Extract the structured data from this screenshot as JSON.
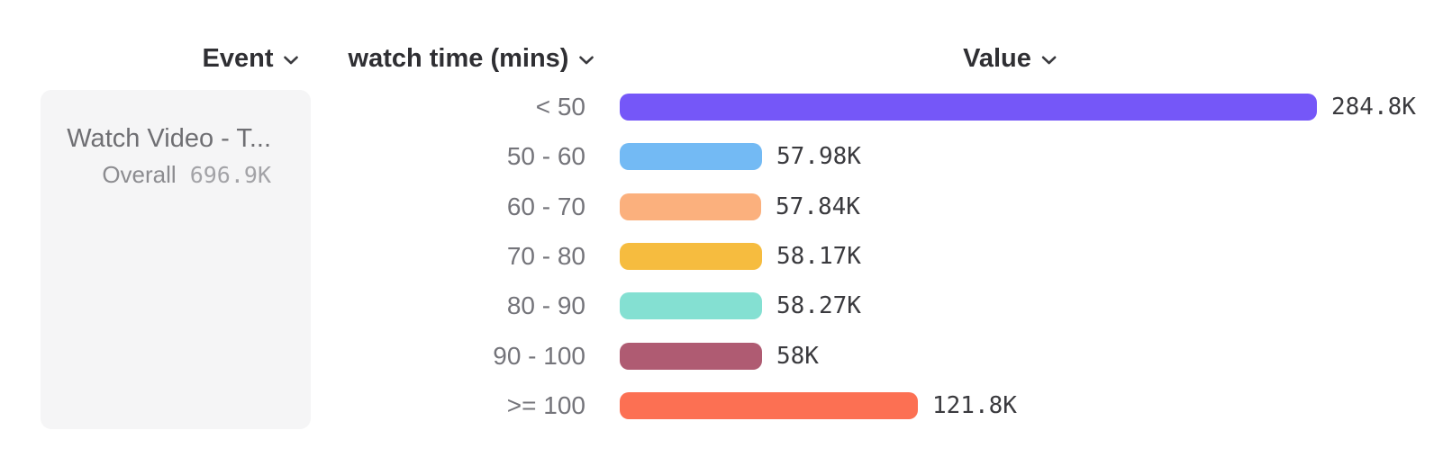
{
  "headers": {
    "event": {
      "label": "Event"
    },
    "breakdown": {
      "label": "watch time (mins)"
    },
    "value": {
      "label": "Value"
    }
  },
  "event_card": {
    "title": "Watch Video - T...",
    "overall_label": "Overall",
    "overall_value": "696.9K"
  },
  "icons": {
    "header_dropdown": "chevron-down"
  },
  "colors": {
    "background": "#ffffff",
    "panel_bg": "#f5f5f6",
    "header_text": "#2f2f33",
    "row_label_text": "#74747a",
    "value_text": "#3a3a3e",
    "event_title_text": "#6f6f73",
    "overall_label_text": "#8c8c90",
    "overall_value_text": "#a3a3a7"
  },
  "chart_data": {
    "type": "bar",
    "orientation": "horizontal",
    "title": "",
    "xlabel": "Value",
    "ylabel": "watch time (mins)",
    "series_label": "Watch Video - T...",
    "overall_total": "696.9K",
    "categories": [
      "< 50",
      "50 - 60",
      "60 - 70",
      "70 - 80",
      "80 - 90",
      "90 - 100",
      ">= 100"
    ],
    "values": [
      284800,
      57980,
      57840,
      58170,
      58270,
      58000,
      121800
    ],
    "value_labels": [
      "284.8K",
      "57.98K",
      "57.84K",
      "58.17K",
      "58.27K",
      "58K",
      "121.8K"
    ],
    "bar_colors": [
      "#7557F8",
      "#73BAF4",
      "#FBB07D",
      "#F6BC3F",
      "#84E0D2",
      "#AF5B72",
      "#FC7053"
    ],
    "xlim": [
      0,
      284800
    ],
    "grid": false,
    "legend": false
  }
}
